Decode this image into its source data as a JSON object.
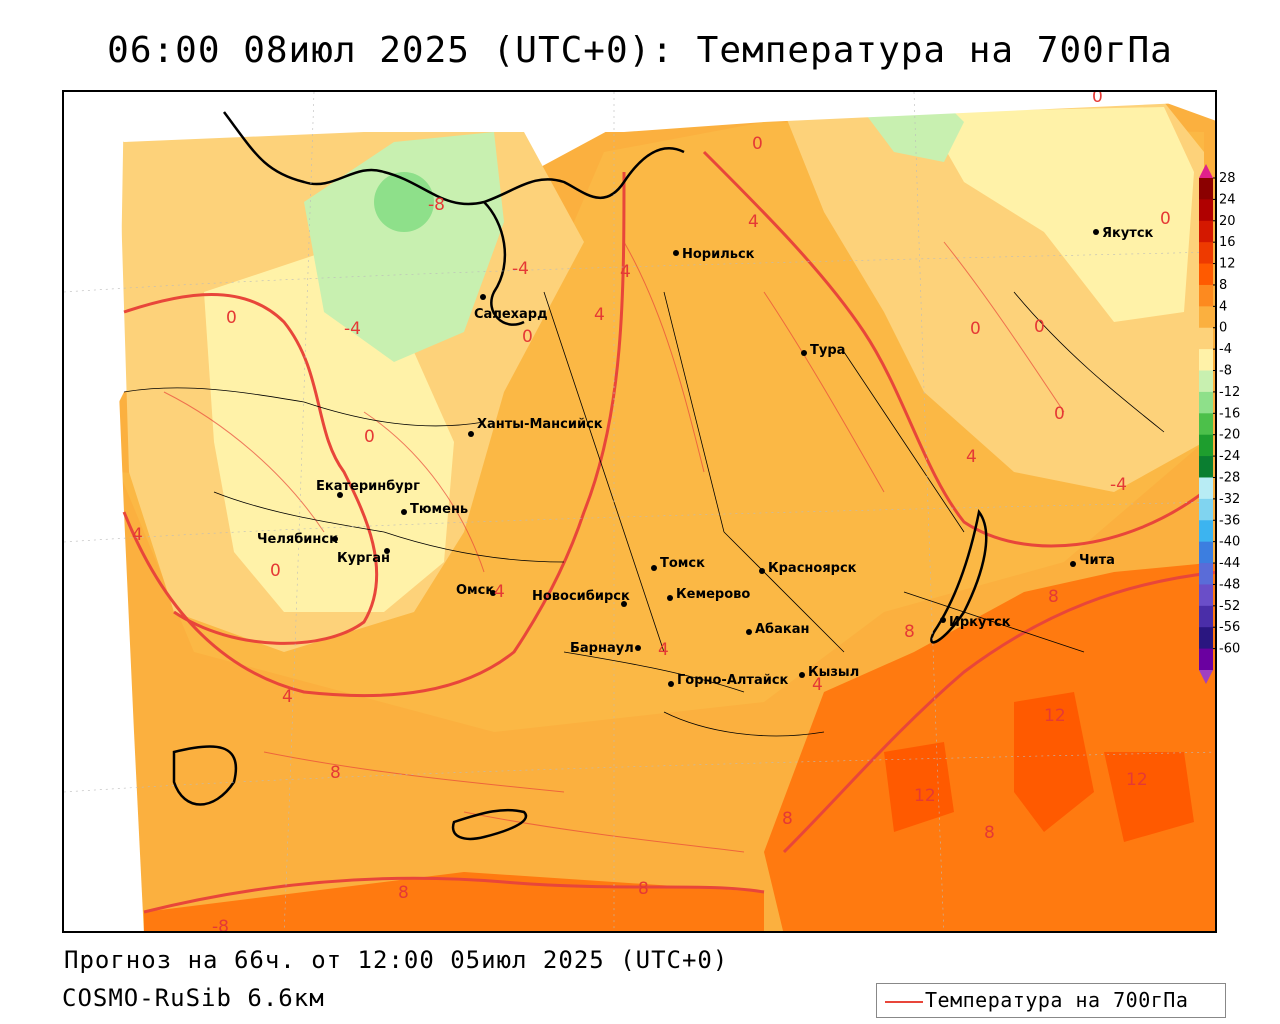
{
  "title": "06:00 08июл 2025 (UTC+0): Температура на 700гПа",
  "footer": {
    "forecast": "Прогноз на 66ч. от 12:00 05июл 2025 (UTC+0)",
    "model": "COSMO-RuSib 6.6км"
  },
  "legend": {
    "label": "Температура на 700гПа",
    "line_color": "#e8463a"
  },
  "colorbar": {
    "ticks": [
      "28",
      "24",
      "20",
      "16",
      "12",
      "8",
      "4",
      "0",
      "-4",
      "-8",
      "-12",
      "-16",
      "-20",
      "-24",
      "-28",
      "-32",
      "-36",
      "-40",
      "-44",
      "-48",
      "-52",
      "-56",
      "-60"
    ],
    "colors": [
      "#8b0000",
      "#b00000",
      "#d41800",
      "#ee3a00",
      "#ff5a00",
      "#fd8a1f",
      "#fbb03f",
      "#fdd27a",
      "#fff2a8",
      "#c8f0b0",
      "#8ee08a",
      "#4cc04a",
      "#1e9e2e",
      "#0a7e30",
      "#b8ecf4",
      "#80d4f0",
      "#3cb4f0",
      "#3c7ee0",
      "#5a6cd8",
      "#6a4ec8",
      "#4a2ea8",
      "#2a1680",
      "#6a00a0"
    ],
    "top_arrow_color": "#e0208c",
    "bottom_arrow_color": "#a040c0"
  },
  "cities": [
    {
      "name": "Норильск"
    },
    {
      "name": "Якутск"
    },
    {
      "name": "Салехард"
    },
    {
      "name": "Тура"
    },
    {
      "name": "Ханты-Мансийск"
    },
    {
      "name": "Екатеринбург"
    },
    {
      "name": "Тюмень"
    },
    {
      "name": "Челябинск"
    },
    {
      "name": "Курган"
    },
    {
      "name": "Омск"
    },
    {
      "name": "Новосибирск"
    },
    {
      "name": "Томск"
    },
    {
      "name": "Кемерово"
    },
    {
      "name": "Красноярск"
    },
    {
      "name": "Абакан"
    },
    {
      "name": "Барнаул"
    },
    {
      "name": "Горно-Алтайск"
    },
    {
      "name": "Кызыл"
    },
    {
      "name": "Иркутск"
    },
    {
      "name": "Чита"
    }
  ],
  "contour_labels": [
    "0",
    "-8",
    "4",
    "-4",
    "4",
    "0",
    "0",
    "4",
    "0",
    "-4",
    "0",
    "0",
    "0",
    "0",
    "4",
    "0",
    "4",
    "-4",
    "4",
    "0",
    "8",
    "8",
    "4",
    "4",
    "8",
    "12",
    "12",
    "12",
    "8",
    "8",
    "8",
    "8",
    "-8",
    "4"
  ]
}
